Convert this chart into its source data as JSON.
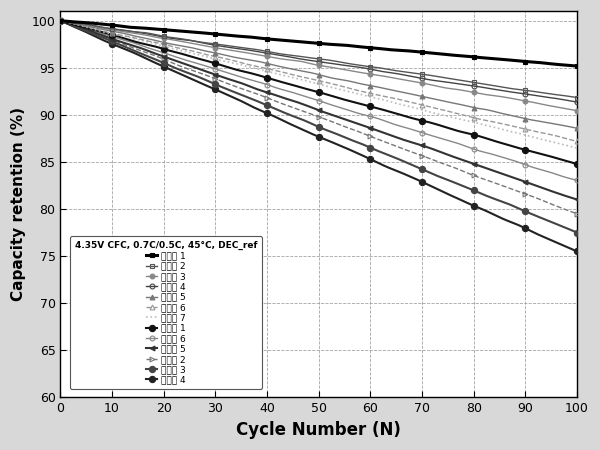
{
  "title": "",
  "xlabel": "Cycle Number (N)",
  "ylabel": "Capacity retention (%)",
  "annotation": "4.35V CFC, 0.7C/0.5C, 45°C, DEC_ref",
  "xlim": [
    0,
    100
  ],
  "ylim": [
    60,
    101
  ],
  "yticks": [
    60,
    65,
    70,
    75,
    80,
    85,
    90,
    95,
    100
  ],
  "xticks": [
    0,
    10,
    20,
    30,
    40,
    50,
    60,
    70,
    80,
    90,
    100
  ],
  "series": [
    {
      "label": "実施例 1",
      "end_value": 95.2,
      "color": "#000000",
      "marker": "s",
      "markersize": 3.5,
      "linestyle": "-",
      "linewidth": 2.2,
      "fillstyle": "full",
      "zorder": 14,
      "noise_scale": 0.06
    },
    {
      "label": "実施例 2",
      "end_value": 91.8,
      "color": "#555555",
      "marker": "s",
      "markersize": 3.5,
      "linestyle": "-",
      "linewidth": 1.0,
      "fillstyle": "none",
      "zorder": 12,
      "noise_scale": 0.1
    },
    {
      "label": "実施例 3",
      "end_value": 90.5,
      "color": "#888888",
      "marker": "o",
      "markersize": 3.5,
      "linestyle": "-",
      "linewidth": 1.0,
      "fillstyle": "full",
      "zorder": 11,
      "noise_scale": 0.1
    },
    {
      "label": "実施例 4",
      "end_value": 91.3,
      "color": "#444444",
      "marker": "o",
      "markersize": 3.5,
      "linestyle": "-",
      "linewidth": 1.0,
      "fillstyle": "none",
      "zorder": 10,
      "noise_scale": 0.1
    },
    {
      "label": "実施例 5",
      "end_value": 88.5,
      "color": "#777777",
      "marker": "^",
      "markersize": 3.5,
      "linestyle": "-",
      "linewidth": 1.0,
      "fillstyle": "full",
      "zorder": 9,
      "noise_scale": 0.1
    },
    {
      "label": "比較例 6",
      "end_value": 87.2,
      "color": "#999999",
      "marker": "^",
      "markersize": 3.5,
      "linestyle": "--",
      "linewidth": 1.0,
      "fillstyle": "none",
      "zorder": 8,
      "noise_scale": 0.1
    },
    {
      "label": "比較例 7",
      "end_value": 86.5,
      "color": "#bbbbbb",
      "marker": "None",
      "markersize": 3,
      "linestyle": ":",
      "linewidth": 1.2,
      "fillstyle": "none",
      "zorder": 7,
      "noise_scale": 0.1
    },
    {
      "label": "比較例 1",
      "end_value": 84.8,
      "color": "#111111",
      "marker": "o",
      "markersize": 4.5,
      "linestyle": "-",
      "linewidth": 1.5,
      "fillstyle": "full",
      "zorder": 6,
      "noise_scale": 0.1
    },
    {
      "label": "実施例 6",
      "end_value": 83.0,
      "color": "#888888",
      "marker": "o",
      "markersize": 3.5,
      "linestyle": "-",
      "linewidth": 1.0,
      "fillstyle": "none",
      "zorder": 5,
      "noise_scale": 0.1
    },
    {
      "label": "比較例 5",
      "end_value": 81.0,
      "color": "#333333",
      "marker": "<",
      "markersize": 3.5,
      "linestyle": "-",
      "linewidth": 1.5,
      "fillstyle": "full",
      "zorder": 5,
      "noise_scale": 0.1
    },
    {
      "label": "比較例 2",
      "end_value": 79.5,
      "color": "#777777",
      "marker": ">",
      "markersize": 3.5,
      "linestyle": "--",
      "linewidth": 1.0,
      "fillstyle": "none",
      "zorder": 4,
      "noise_scale": 0.1
    },
    {
      "label": "比較例 3",
      "end_value": 77.5,
      "color": "#444444",
      "marker": "o",
      "markersize": 4.5,
      "linestyle": "-",
      "linewidth": 1.5,
      "fillstyle": "full",
      "zorder": 4,
      "noise_scale": 0.1
    },
    {
      "label": "比較例 4",
      "end_value": 75.5,
      "color": "#222222",
      "marker": "o",
      "markersize": 4.5,
      "linestyle": "-",
      "linewidth": 1.5,
      "fillstyle": "full",
      "zorder": 3,
      "noise_scale": 0.1
    }
  ],
  "background_color": "#ffffff",
  "figure_bg": "#d8d8d8"
}
